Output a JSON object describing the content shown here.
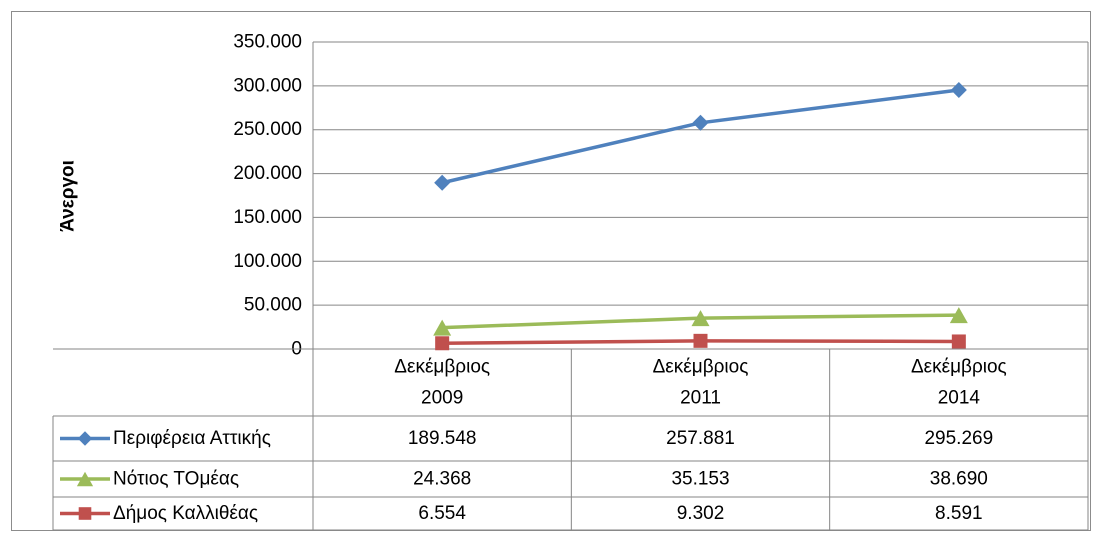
{
  "chart_data": {
    "type": "line",
    "ylabel": "Άνεργοι",
    "ylim": [
      0,
      350000
    ],
    "yticks": [
      0,
      50000,
      100000,
      150000,
      200000,
      250000,
      300000,
      350000
    ],
    "ytick_labels": [
      "0",
      "50.000",
      "100.000",
      "150.000",
      "200.000",
      "250.000",
      "300.000",
      "350.000"
    ],
    "categories": [
      [
        "Δεκέμβριος",
        "2009"
      ],
      [
        "Δεκέμβριος",
        "2011"
      ],
      [
        "Δεκέμβριος",
        "2014"
      ]
    ],
    "grid": true,
    "legend": "data-table",
    "series": [
      {
        "name": "Περιφέρεια Αττικής",
        "values": [
          189548,
          257881,
          295269
        ],
        "labels": [
          "189.548",
          "257.881",
          "295.269"
        ],
        "color": "#4f81bd",
        "marker": "diamond"
      },
      {
        "name": "Νότιος ΤΟμέας",
        "values": [
          24368,
          35153,
          38690
        ],
        "labels": [
          "24.368",
          "35.153",
          "38.690"
        ],
        "color": "#9bbb59",
        "marker": "triangle"
      },
      {
        "name": "Δήμος Καλλιθέας",
        "values": [
          6554,
          9302,
          8591
        ],
        "labels": [
          "6.554",
          "9.302",
          "8.591"
        ],
        "color": "#c0504d",
        "marker": "square"
      }
    ]
  }
}
